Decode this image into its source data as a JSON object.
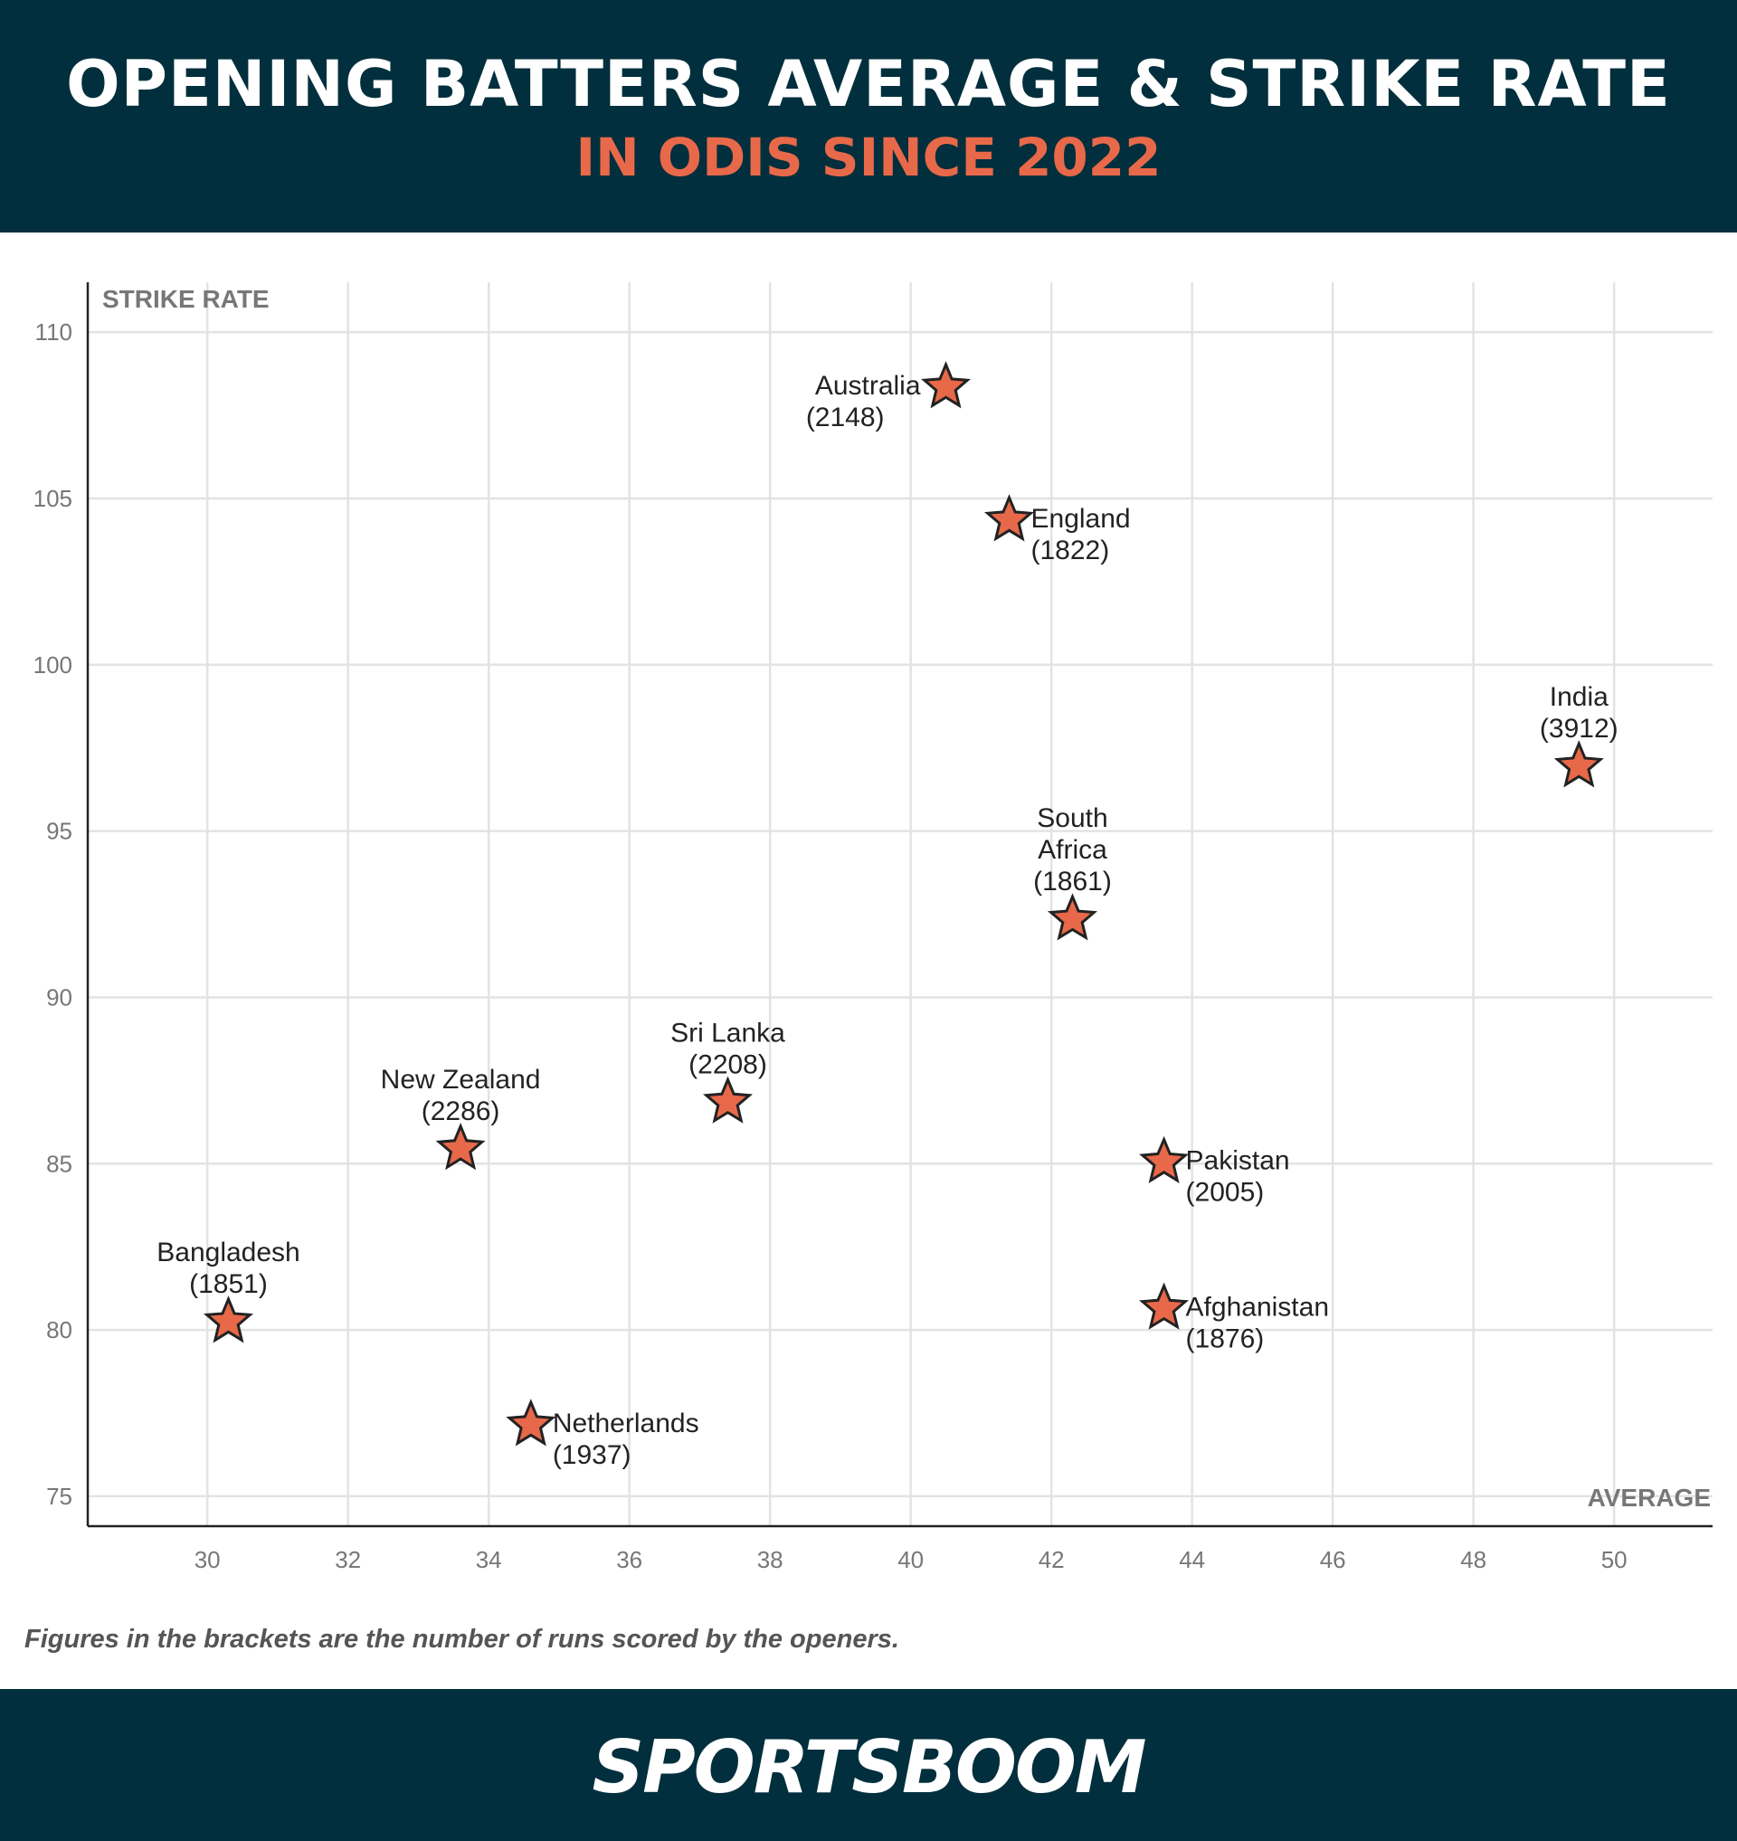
{
  "header": {
    "title": "OPENING BATTERS AVERAGE & STRIKE RATE",
    "subtitle": "IN ODIS SINCE 2022"
  },
  "footnote": "Figures in the brackets are the number of runs scored by the openers.",
  "logo": "SPORTSBOOM",
  "colors": {
    "header_bg": "#022f3d",
    "accent": "#e8694a",
    "marker": "#e8694a",
    "grid": "#e3e3e3"
  },
  "chart_data": {
    "type": "scatter",
    "xlabel": "AVERAGE",
    "ylabel": "STRIKE RATE",
    "xlim": [
      28.3,
      51.4
    ],
    "ylim": [
      74.1,
      111.5
    ],
    "xticks": [
      30,
      32,
      34,
      36,
      38,
      40,
      42,
      44,
      46,
      48,
      50
    ],
    "yticks": [
      75,
      80,
      85,
      90,
      95,
      100,
      105,
      110
    ],
    "grid": true,
    "marker": "star",
    "points": [
      {
        "label": "Australia",
        "runs": "(2148)",
        "x": 40.5,
        "y": 108.4,
        "label_pos": "left"
      },
      {
        "label": "England",
        "runs": "(1822)",
        "x": 41.4,
        "y": 104.4,
        "label_pos": "right"
      },
      {
        "label": "India",
        "runs": "(3912)",
        "x": 49.5,
        "y": 97.0,
        "label_pos": "above"
      },
      {
        "label": "South Africa",
        "runs": "(1861)",
        "x": 42.3,
        "y": 92.4,
        "label_pos": "above"
      },
      {
        "label": "Sri Lanka",
        "runs": "(2208)",
        "x": 37.4,
        "y": 86.9,
        "label_pos": "above"
      },
      {
        "label": "New Zealand",
        "runs": "(2286)",
        "x": 33.6,
        "y": 85.5,
        "label_pos": "above"
      },
      {
        "label": "Pakistan",
        "runs": "(2005)",
        "x": 43.6,
        "y": 85.1,
        "label_pos": "right"
      },
      {
        "label": "Afghanistan",
        "runs": "(1876)",
        "x": 43.6,
        "y": 80.7,
        "label_pos": "right"
      },
      {
        "label": "Bangladesh",
        "runs": "(1851)",
        "x": 30.3,
        "y": 80.3,
        "label_pos": "above"
      },
      {
        "label": "Netherlands",
        "runs": "(1937)",
        "x": 34.6,
        "y": 77.2,
        "label_pos": "right"
      }
    ]
  }
}
